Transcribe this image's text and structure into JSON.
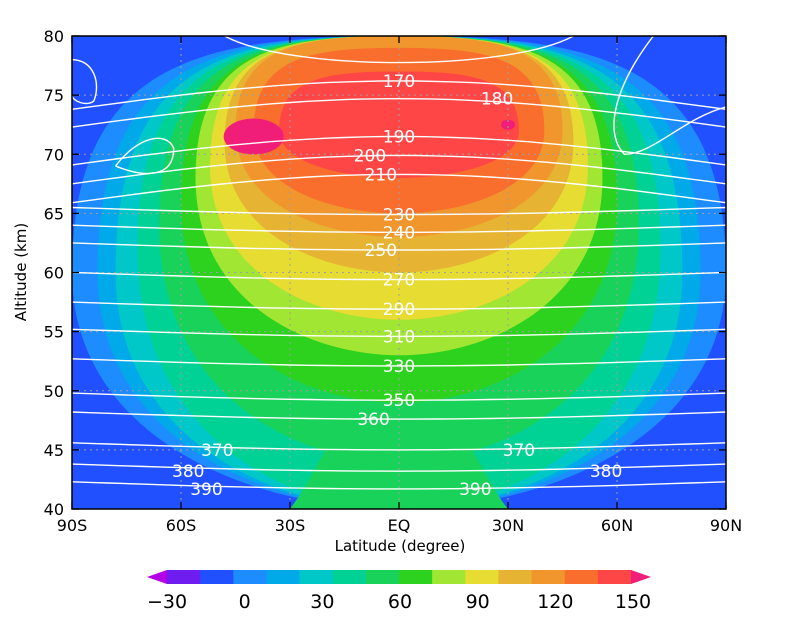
{
  "chart_data": {
    "type": "heatmap",
    "xlabel": "Latitude (degree)",
    "ylabel": "Altitude (km)",
    "xlim": [
      -90,
      90
    ],
    "ylim": [
      40,
      80
    ],
    "grid": true,
    "x_ticks": [
      {
        "value": -90,
        "label": "90S"
      },
      {
        "value": -60,
        "label": "60S"
      },
      {
        "value": -30,
        "label": "30S"
      },
      {
        "value": 0,
        "label": "EQ"
      },
      {
        "value": 30,
        "label": "30N"
      },
      {
        "value": 60,
        "label": "60N"
      },
      {
        "value": 90,
        "label": "90N"
      }
    ],
    "y_ticks": [
      {
        "value": 40,
        "label": "40"
      },
      {
        "value": 45,
        "label": "45"
      },
      {
        "value": 50,
        "label": "50"
      },
      {
        "value": 55,
        "label": "55"
      },
      {
        "value": 60,
        "label": "60"
      },
      {
        "value": 65,
        "label": "65"
      },
      {
        "value": 70,
        "label": "70"
      },
      {
        "value": 75,
        "label": "75"
      },
      {
        "value": 80,
        "label": "80"
      }
    ],
    "colorbar": {
      "levels": [
        -30,
        -15,
        0,
        15,
        30,
        45,
        60,
        75,
        90,
        105,
        120,
        135,
        150
      ],
      "colors": [
        "#b400e6",
        "#6e1cf0",
        "#2050ff",
        "#1c8cff",
        "#00aae8",
        "#00c8c8",
        "#00d296",
        "#19d25a",
        "#2dd21e",
        "#a0e632",
        "#e6dc32",
        "#e6b432",
        "#f0962d",
        "#fa6e2d",
        "#ff4646",
        "#f01e78"
      ],
      "labels": [
        {
          "value": -30,
          "label": "−30"
        },
        {
          "value": 0,
          "label": "0"
        },
        {
          "value": 30,
          "label": "30"
        },
        {
          "value": 60,
          "label": "60"
        },
        {
          "value": 90,
          "label": "90"
        },
        {
          "value": 120,
          "label": "120"
        },
        {
          "value": 150,
          "label": "150"
        }
      ]
    },
    "contour_labels": [
      {
        "text": "170",
        "x": 0,
        "y": 76.2
      },
      {
        "text": "180",
        "x": 27,
        "y": 74.7
      },
      {
        "text": "190",
        "x": 0,
        "y": 71.5
      },
      {
        "text": "200",
        "x": -8,
        "y": 69.9
      },
      {
        "text": "210",
        "x": -5,
        "y": 68.3
      },
      {
        "text": "230",
        "x": 0,
        "y": 64.9
      },
      {
        "text": "240",
        "x": 0,
        "y": 63.4
      },
      {
        "text": "250",
        "x": -5,
        "y": 61.9
      },
      {
        "text": "270",
        "x": 0,
        "y": 59.4
      },
      {
        "text": "290",
        "x": 0,
        "y": 56.9
      },
      {
        "text": "310",
        "x": 0,
        "y": 54.6
      },
      {
        "text": "330",
        "x": 0,
        "y": 52.1
      },
      {
        "text": "350",
        "x": 0,
        "y": 49.2
      },
      {
        "text": "360",
        "x": -7,
        "y": 47.6
      },
      {
        "text": "370",
        "x": -50,
        "y": 45.0
      },
      {
        "text": "370",
        "x": 33,
        "y": 45.0
      },
      {
        "text": "380",
        "x": -58,
        "y": 43.2
      },
      {
        "text": "380",
        "x": 57,
        "y": 43.2
      },
      {
        "text": "390",
        "x": -53,
        "y": 41.7
      },
      {
        "text": "390",
        "x": 21,
        "y": 41.7
      }
    ]
  }
}
